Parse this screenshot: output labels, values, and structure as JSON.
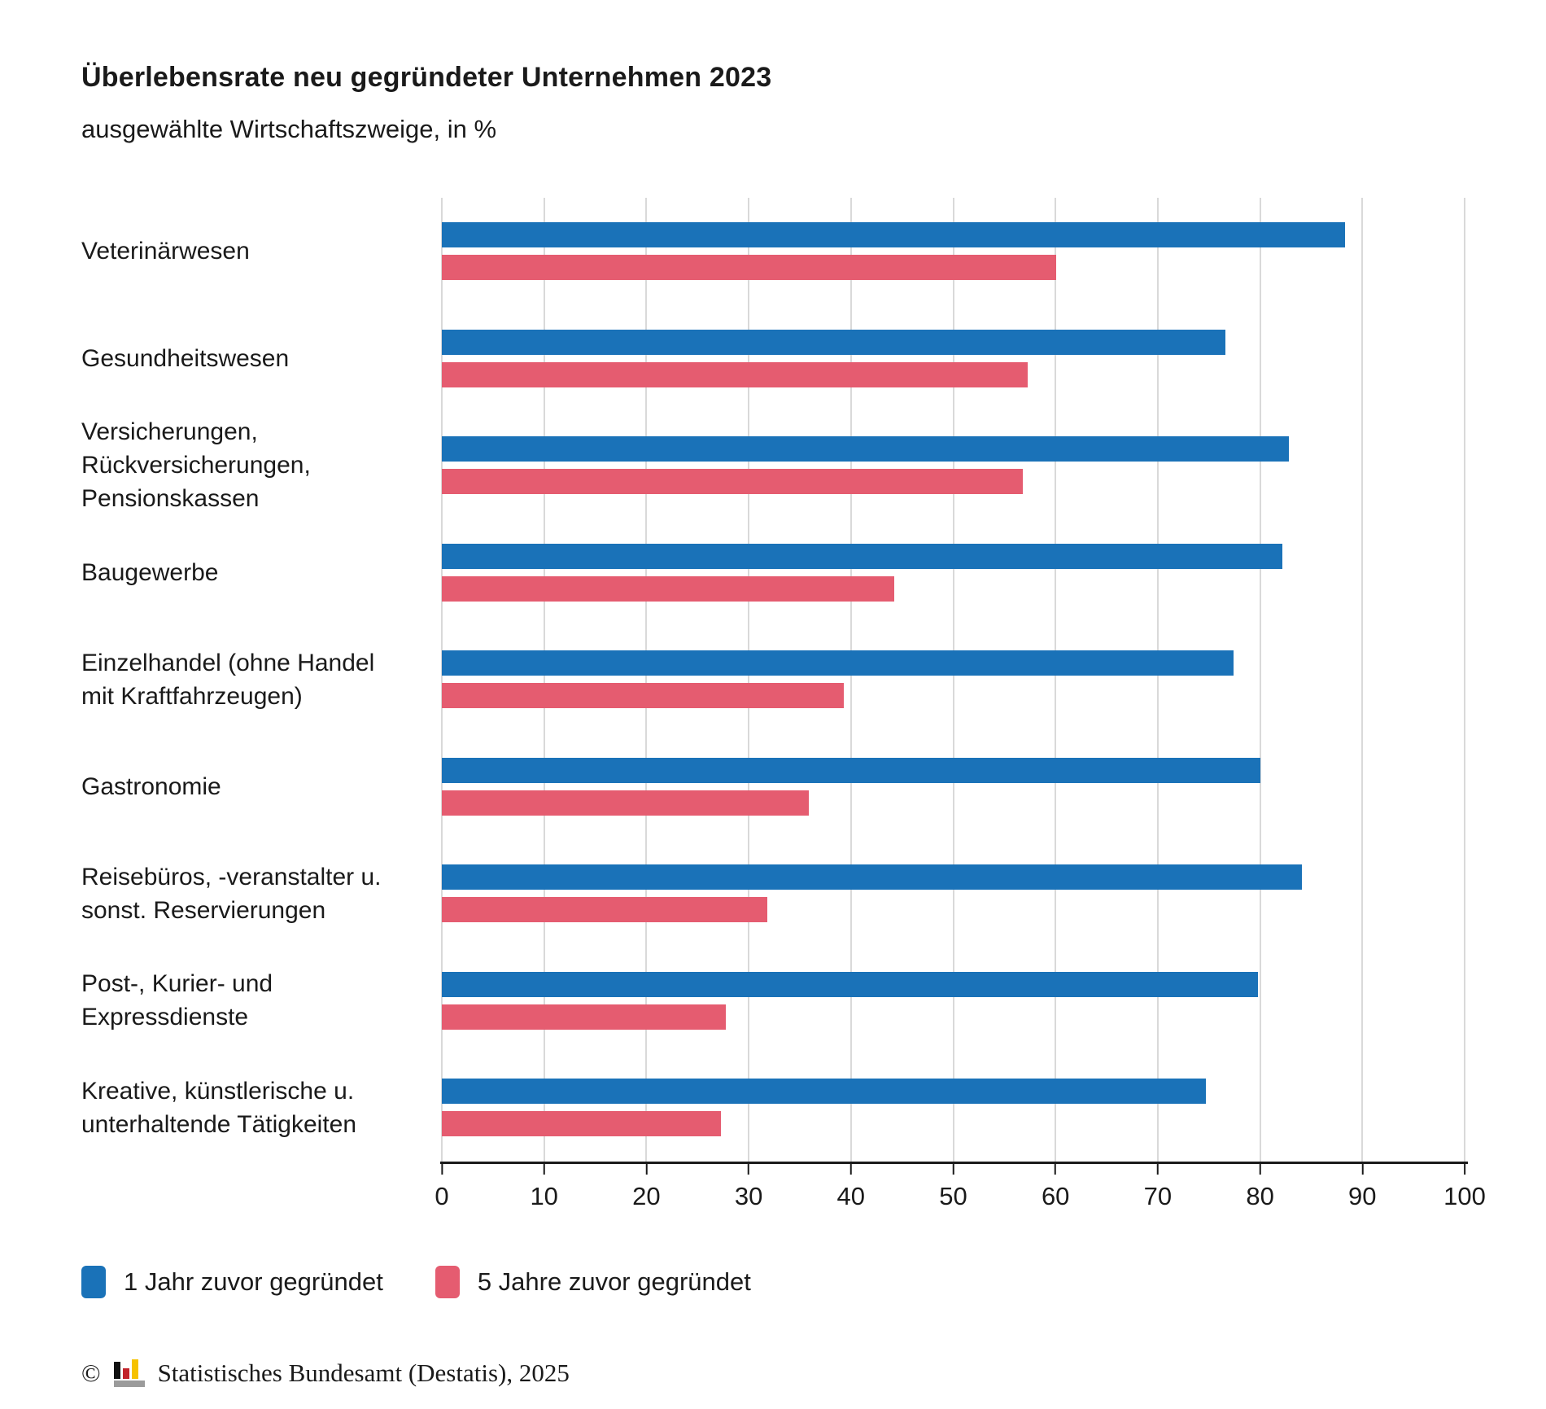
{
  "title": "Überlebensrate neu gegründeter Unternehmen 2023",
  "subtitle": "ausgewählte Wirtschaftszweige, in %",
  "colors": {
    "series_blue": "#1a72b8",
    "series_red": "#e55c70",
    "gridline": "#d9d9d9",
    "axis": "#1a1a1a",
    "text": "#1a1a1a",
    "background": "#ffffff"
  },
  "chart_data": {
    "type": "bar",
    "orientation": "horizontal",
    "title": "Überlebensrate neu gegründeter Unternehmen 2023",
    "subtitle": "ausgewählte Wirtschaftszweige, in %",
    "categories": [
      "Veterinärwesen",
      "Gesundheitswesen",
      "Versicherungen,\nRückversicherungen,\nPensionskassen",
      "Baugewerbe",
      "Einzelhandel (ohne Handel\nmit Kraftfahrzeugen)",
      "Gastronomie",
      "Reisebüros, -veranstalter u.\nsonst. Reservierungen",
      "Post-, Kurier- und\nExpressdienste",
      "Kreative, künstlerische u.\nunterhaltende Tätigkeiten"
    ],
    "series": [
      {
        "name": "1 Jahr zuvor gegründet",
        "color": "#1a72b8",
        "values": [
          88.3,
          76.6,
          82.8,
          82.2,
          77.4,
          80.0,
          84.1,
          79.8,
          74.7
        ]
      },
      {
        "name": "5 Jahre zuvor gegründet",
        "color": "#e55c70",
        "values": [
          60.1,
          57.3,
          56.8,
          44.2,
          39.3,
          35.9,
          31.8,
          27.8,
          27.3
        ]
      }
    ],
    "xlim": [
      0,
      100
    ],
    "xticks": [
      0,
      10,
      20,
      30,
      40,
      50,
      60,
      70,
      80,
      90,
      100
    ],
    "grid": "vertical",
    "legend_position": "bottom"
  },
  "footer": {
    "copyright": "©",
    "logo": "destatis-bar-chart-logo",
    "text": "Statistisches Bundesamt (Destatis), 2025"
  }
}
